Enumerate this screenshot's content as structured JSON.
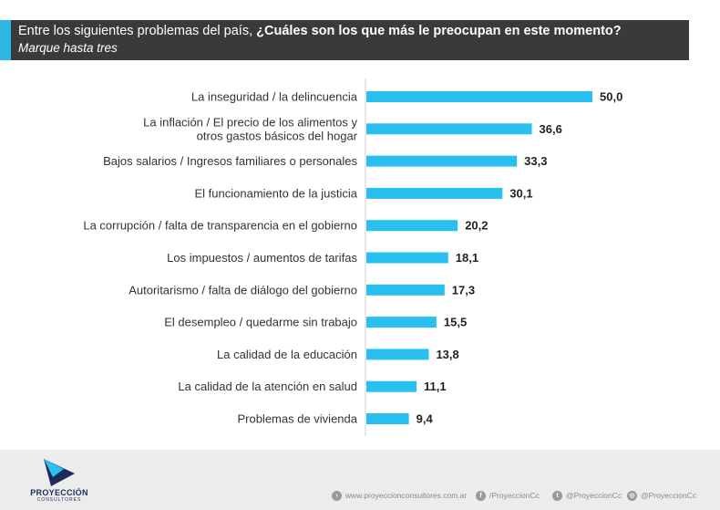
{
  "header": {
    "question_prefix": "Entre los siguientes problemas del país, ",
    "question_bold": "¿Cuáles son los que más le preocupan en este momento?",
    "instruction": "Marque hasta tres"
  },
  "chart_data": {
    "type": "bar",
    "orientation": "horizontal",
    "categories": [
      "La inseguridad / la delincuencia",
      "La inflación / El precio de los alimentos y\notros gastos básicos del hogar",
      "Bajos salarios / Ingresos familiares o personales",
      "El funcionamiento de la justicia",
      "La corrupción / falta de transparencia en el gobierno",
      "Los impuestos / aumentos de tarifas",
      "Autoritarismo / falta de diálogo del gobierno",
      "El desempleo / quedarme sin trabajo",
      "La calidad de la educación",
      "La calidad de la atención en salud",
      "Problemas de vivienda"
    ],
    "values": [
      50.0,
      36.6,
      33.3,
      30.1,
      20.2,
      18.1,
      17.3,
      15.5,
      13.8,
      11.1,
      9.4
    ],
    "value_labels": [
      "50,0",
      "36,6",
      "33,3",
      "30,1",
      "20,2",
      "18,1",
      "17,3",
      "15,5",
      "13,8",
      "11,1",
      "9,4"
    ],
    "bar_color": "#29c0f0",
    "xlim": [
      0,
      50
    ],
    "grid": false
  },
  "footer": {
    "brand": "PROYECCIÓN",
    "brand_sub": "CONSULTORES",
    "website": "www.proyeccionconsultores.com.ar",
    "facebook": "/ProyeccionCc",
    "twitter": "@ProyeccionCc",
    "instagram": "@ProyeccionCc"
  },
  "colors": {
    "header_bg": "#3a3a3a",
    "accent": "#2eb8e8",
    "footer_bg": "#ececec",
    "brand": "#1d2b5a"
  }
}
